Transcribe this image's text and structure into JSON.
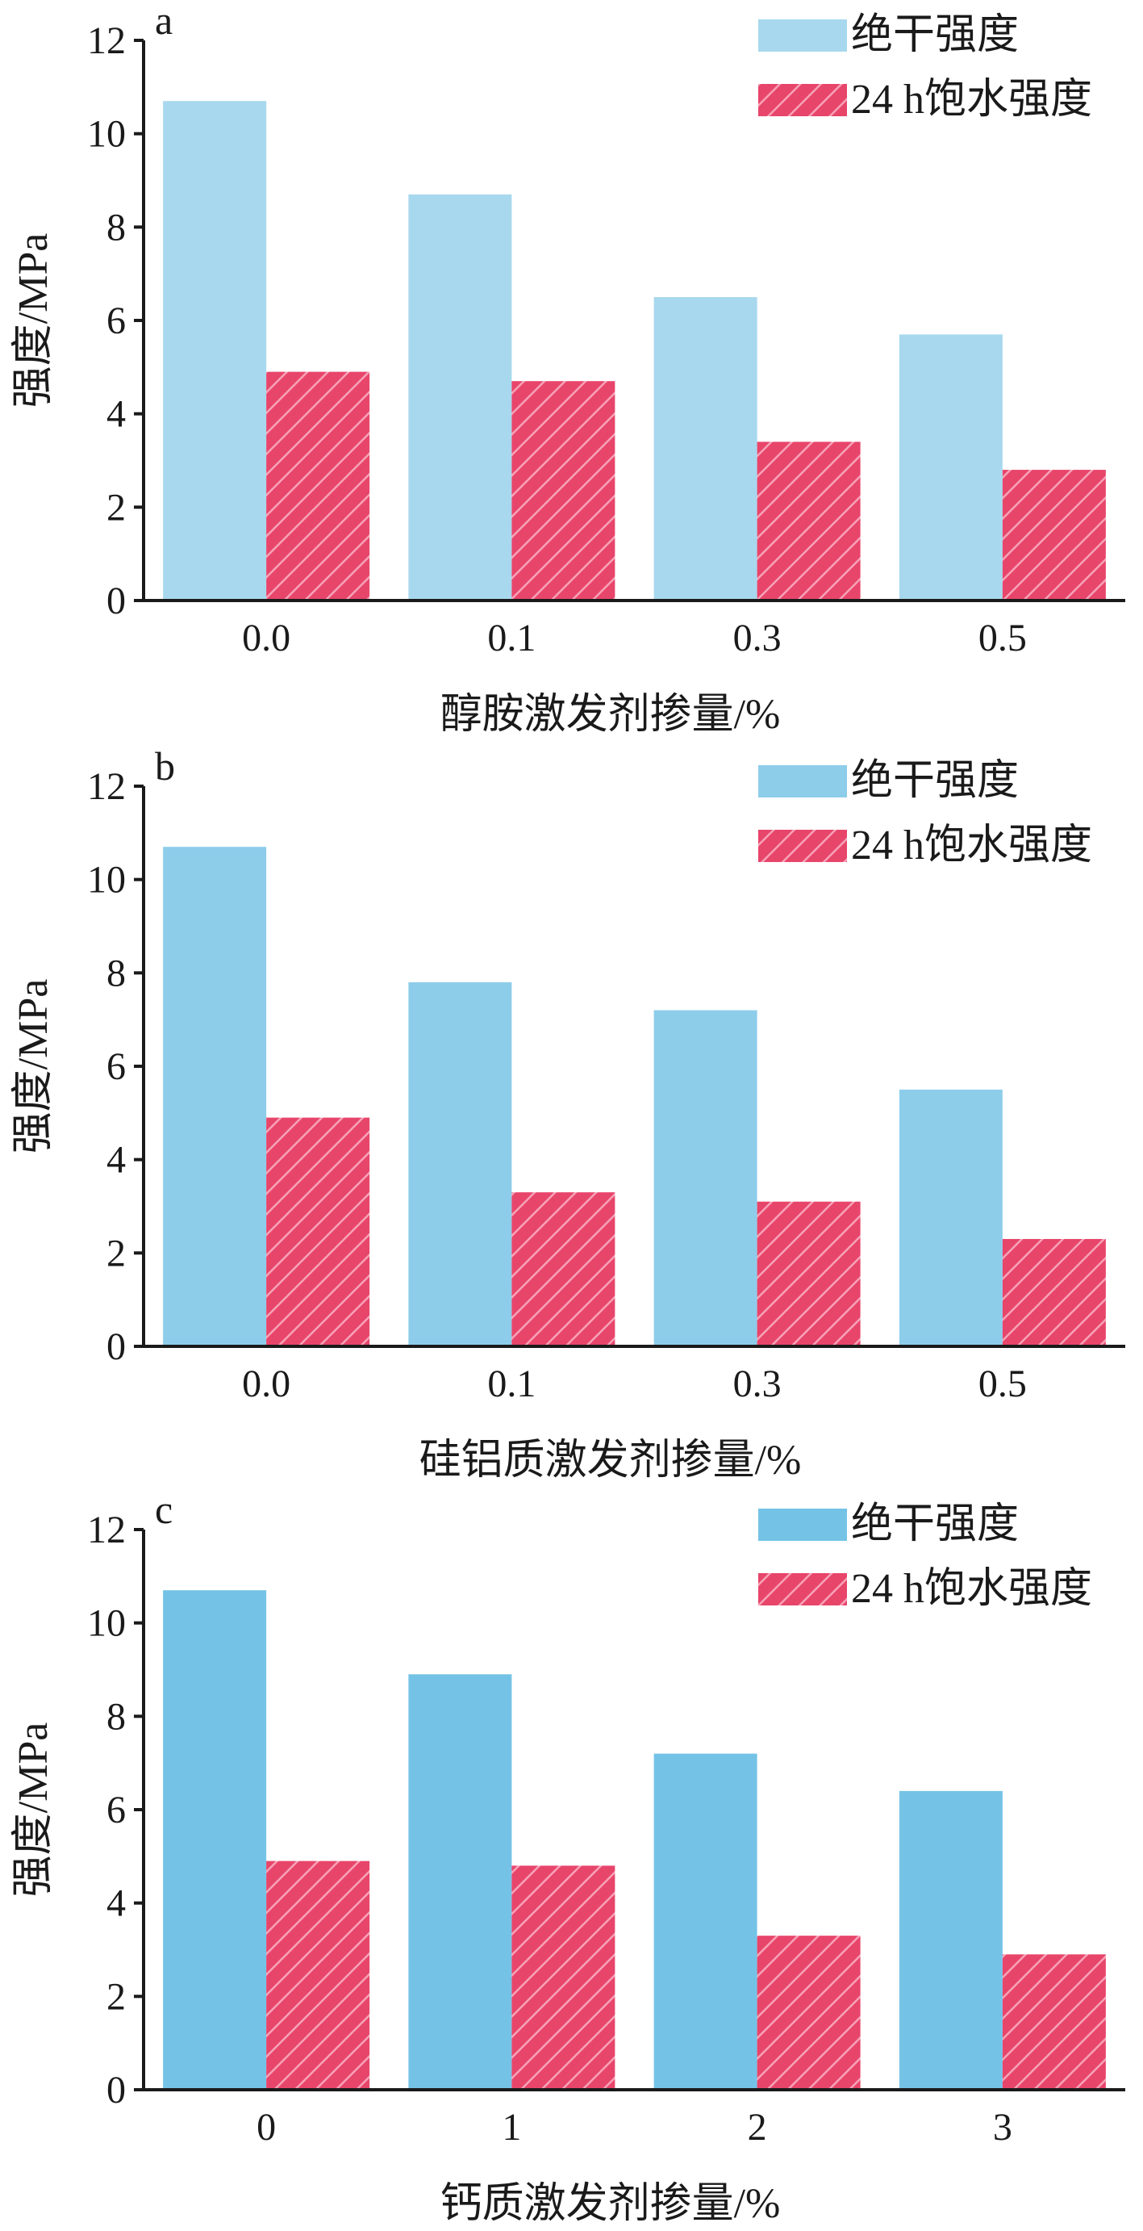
{
  "chart_data": [
    {
      "type": "bar",
      "panel": "a",
      "categories": [
        "0.0",
        "0.1",
        "0.3",
        "0.5"
      ],
      "xlabel": "醇胺激发剂掺量/%",
      "ylabel": "强度/MPa",
      "ylim": [
        0,
        12
      ],
      "yticks": [
        "0",
        "2",
        "4",
        "6",
        "8",
        "10",
        "12"
      ],
      "legend_position": "top-right",
      "series": [
        {
          "name": "绝干强度",
          "values": [
            10.7,
            8.7,
            6.5,
            5.7
          ],
          "color": "#a8d8ee",
          "pattern": "solid"
        },
        {
          "name": "24 h饱水强度",
          "values": [
            4.9,
            4.7,
            3.4,
            2.8
          ],
          "color": "#e8456b",
          "pattern": "hatched"
        }
      ]
    },
    {
      "type": "bar",
      "panel": "b",
      "categories": [
        "0.0",
        "0.1",
        "0.3",
        "0.5"
      ],
      "xlabel": "硅铝质激发剂掺量/%",
      "ylabel": "强度/MPa",
      "ylim": [
        0,
        12
      ],
      "yticks": [
        "0",
        "2",
        "4",
        "6",
        "8",
        "10",
        "12"
      ],
      "legend_position": "top-right",
      "series": [
        {
          "name": "绝干强度",
          "values": [
            10.7,
            7.8,
            7.2,
            5.5
          ],
          "color": "#8dcdea",
          "pattern": "solid"
        },
        {
          "name": "24 h饱水强度",
          "values": [
            4.9,
            3.3,
            3.1,
            2.3
          ],
          "color": "#e8456b",
          "pattern": "hatched"
        }
      ]
    },
    {
      "type": "bar",
      "panel": "c",
      "categories": [
        "0",
        "1",
        "2",
        "3"
      ],
      "xlabel": "钙质激发剂掺量/%",
      "ylabel": "强度/MPa",
      "ylim": [
        0,
        12
      ],
      "yticks": [
        "0",
        "2",
        "4",
        "6",
        "8",
        "10",
        "12"
      ],
      "legend_position": "top-right",
      "series": [
        {
          "name": "绝干强度",
          "values": [
            10.7,
            8.9,
            7.2,
            6.4
          ],
          "color": "#74c3e6",
          "pattern": "solid"
        },
        {
          "name": "24 h饱水强度",
          "values": [
            4.9,
            4.8,
            3.3,
            2.9
          ],
          "color": "#e8456b",
          "pattern": "hatched"
        }
      ]
    }
  ]
}
